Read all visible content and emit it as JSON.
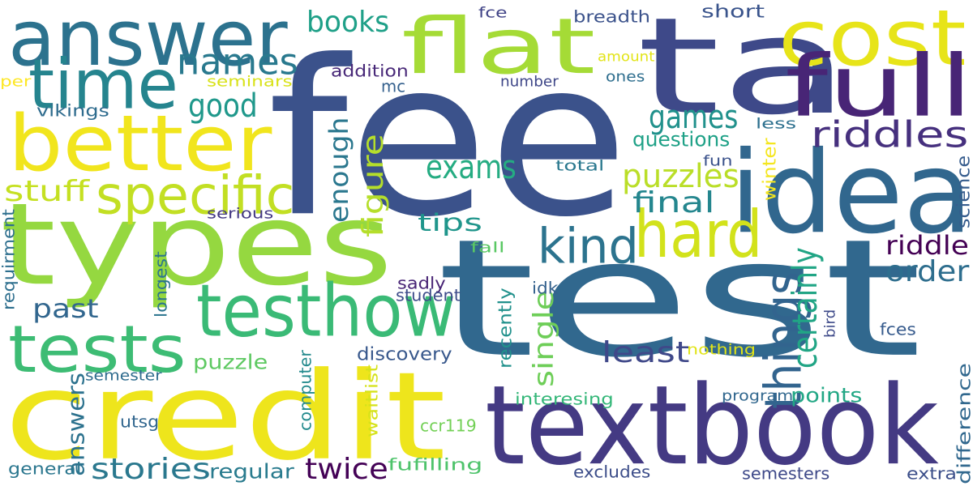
{
  "words": [
    {
      "text": "fee",
      "color": "#3b528b"
    },
    {
      "text": "test",
      "color": "#31688e"
    },
    {
      "text": "types",
      "color": "#95d840"
    },
    {
      "text": "credit",
      "color": "#eee51c"
    },
    {
      "text": "ta",
      "color": "#3e4989"
    },
    {
      "text": "textbook",
      "color": "#443a83"
    },
    {
      "text": "answer",
      "color": "#2c728e"
    },
    {
      "text": "idea",
      "color": "#31678e"
    },
    {
      "text": "better",
      "color": "#f1e51d"
    },
    {
      "text": "flat",
      "color": "#a5db36"
    },
    {
      "text": "cost",
      "color": "#e7e419"
    },
    {
      "text": "full",
      "color": "#482576"
    },
    {
      "text": "time",
      "color": "#25848e"
    },
    {
      "text": "tests",
      "color": "#3dbc74"
    },
    {
      "text": "testhow",
      "color": "#3aba76"
    },
    {
      "text": "hard",
      "color": "#d2e21b"
    },
    {
      "text": "specific",
      "color": "#c2df23"
    },
    {
      "text": "things",
      "color": "#32648e"
    },
    {
      "text": "names",
      "color": "#29798e"
    },
    {
      "text": "kind",
      "color": "#2c738e"
    },
    {
      "text": "riddles",
      "color": "#46307e"
    },
    {
      "text": "good",
      "color": "#1f988b"
    },
    {
      "text": "games",
      "color": "#21918c"
    },
    {
      "text": "stories",
      "color": "#2a788e"
    },
    {
      "text": "puzzles",
      "color": "#bade28"
    },
    {
      "text": "certainly",
      "color": "#21a585"
    },
    {
      "text": "enough",
      "color": "#2a778e"
    },
    {
      "text": "figure",
      "color": "#b5de2b"
    },
    {
      "text": "exams",
      "color": "#25ac82"
    },
    {
      "text": "least",
      "color": "#3f4889"
    },
    {
      "text": "books",
      "color": "#1fa088"
    },
    {
      "text": "stuff",
      "color": "#c5e021"
    },
    {
      "text": "final",
      "color": "#24868e"
    },
    {
      "text": "riddle",
      "color": "#440154"
    },
    {
      "text": "order",
      "color": "#2e6e8e"
    },
    {
      "text": "tips",
      "color": "#1f958b"
    },
    {
      "text": "past",
      "color": "#31668e"
    },
    {
      "text": "twice",
      "color": "#440256"
    },
    {
      "text": "single",
      "color": "#6ece58"
    },
    {
      "text": "regular",
      "color": "#297b8e"
    },
    {
      "text": "puzzle",
      "color": "#5ec962"
    },
    {
      "text": "discovery",
      "color": "#38588c"
    },
    {
      "text": "answers",
      "color": "#2c728e"
    },
    {
      "text": "points",
      "color": "#22a785"
    },
    {
      "text": "questions",
      "color": "#1fa187"
    },
    {
      "text": "breadth",
      "color": "#3b528b"
    },
    {
      "text": "short",
      "color": "#3a548c"
    },
    {
      "text": "fce",
      "color": "#414487"
    },
    {
      "text": "addition",
      "color": "#482878"
    },
    {
      "text": "mc",
      "color": "#34608d"
    },
    {
      "text": "vikings",
      "color": "#2f6c8e"
    },
    {
      "text": "seminars",
      "color": "#d8e219"
    },
    {
      "text": "per",
      "color": "#fde725"
    },
    {
      "text": "amount",
      "color": "#e2e418"
    },
    {
      "text": "number",
      "color": "#3f4788"
    },
    {
      "text": "ones",
      "color": "#2e6e8e"
    },
    {
      "text": "less",
      "color": "#2d708e"
    },
    {
      "text": "fun",
      "color": "#3b528b"
    },
    {
      "text": "total",
      "color": "#2a788e"
    },
    {
      "text": "winter",
      "color": "#f4e61e"
    },
    {
      "text": "science",
      "color": "#365c8d"
    },
    {
      "text": "serious",
      "color": "#443983"
    },
    {
      "text": "fall",
      "color": "#5ac864"
    },
    {
      "text": "requirment",
      "color": "#2e6f8e"
    },
    {
      "text": "longest",
      "color": "#2b748e"
    },
    {
      "text": "idk",
      "color": "#34618d"
    },
    {
      "text": "sadly",
      "color": "#482475"
    },
    {
      "text": "student",
      "color": "#3e4c8a"
    },
    {
      "text": "recently",
      "color": "#21918c"
    },
    {
      "text": "bird",
      "color": "#3e4a89"
    },
    {
      "text": "fces",
      "color": "#375b8d"
    },
    {
      "text": "nothing",
      "color": "#e1e418"
    },
    {
      "text": "computer",
      "color": "#238a8d"
    },
    {
      "text": "waitlist",
      "color": "#d5e21a"
    },
    {
      "text": "semester",
      "color": "#2f6c8e"
    },
    {
      "text": "interesing",
      "color": "#35b779"
    },
    {
      "text": "program",
      "color": "#31678e"
    },
    {
      "text": "difference",
      "color": "#31688e"
    },
    {
      "text": "utsg",
      "color": "#31668e"
    },
    {
      "text": "ccr119",
      "color": "#73d056"
    },
    {
      "text": "general",
      "color": "#2a768e"
    },
    {
      "text": "fufilling",
      "color": "#4ec36b"
    },
    {
      "text": "excludes",
      "color": "#3d4e8a"
    },
    {
      "text": "semesters",
      "color": "#3e4989"
    },
    {
      "text": "extra",
      "color": "#3c4f8a"
    }
  ]
}
